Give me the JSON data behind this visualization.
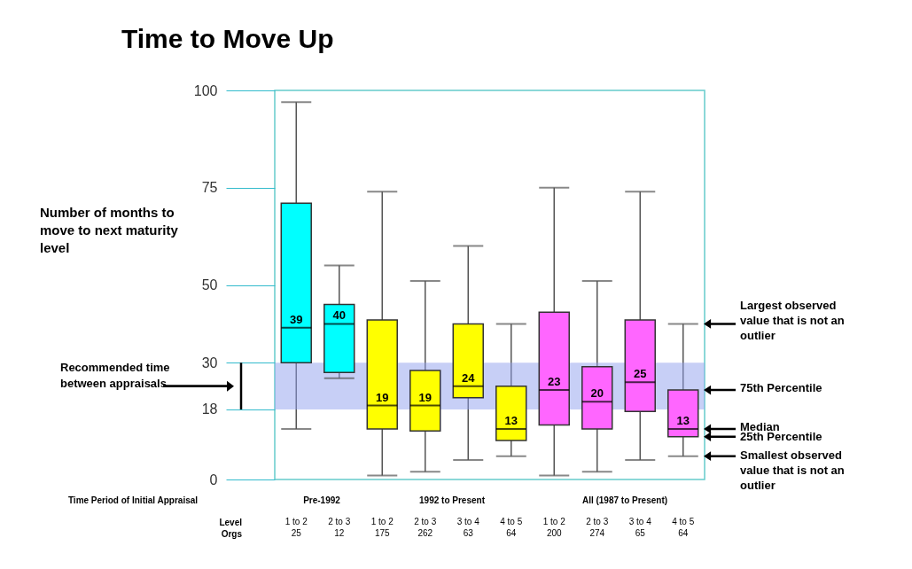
{
  "chart_data": {
    "type": "box",
    "title": "Time to Move Up",
    "ylabel": "Number of months to move to next maturity level",
    "categories": [
      "1 to 2\n25",
      "2 to 3\n12",
      "1 to 2\n175",
      "2 to 3\n262",
      "3 to 4\n63",
      "4 to 5\n64",
      "1 to 2\n200",
      "2 to 3\n274",
      "3 to 4\n65",
      "4 to 5\n64"
    ],
    "boxes": [
      {
        "low": 13,
        "q1": 30,
        "median": 39,
        "q3": 71,
        "high": 97
      },
      {
        "low": 26,
        "q1": 27.5,
        "median": 40,
        "q3": 45,
        "high": 55
      },
      {
        "low": 1,
        "q1": 13,
        "median": 19,
        "q3": 41,
        "high": 74
      },
      {
        "low": 2,
        "q1": 12.5,
        "median": 19,
        "q3": 28,
        "high": 51
      },
      {
        "low": 5,
        "q1": 21,
        "median": 24,
        "q3": 40,
        "high": 60
      },
      {
        "low": 6,
        "q1": 10,
        "median": 13,
        "q3": 24,
        "high": 40
      },
      {
        "low": 1,
        "q1": 14,
        "median": 23,
        "q3": 43,
        "high": 75
      },
      {
        "low": 2,
        "q1": 13,
        "median": 20,
        "q3": 29,
        "high": 51
      },
      {
        "low": 5,
        "q1": 17.5,
        "median": 25,
        "q3": 41,
        "high": 74
      },
      {
        "low": 6,
        "q1": 11,
        "median": 13,
        "q3": 23,
        "high": 40
      }
    ],
    "value_labels": [
      "39",
      "40",
      "19",
      "19",
      "24",
      "13",
      "23",
      "20",
      "25",
      "13"
    ],
    "colors": [
      "#00ffff",
      "#00ffff",
      "#ffff00",
      "#ffff00",
      "#ffff00",
      "#ffff00",
      "#ff66ff",
      "#ff66ff",
      "#ff66ff",
      "#ff66ff"
    ],
    "ylim": [
      0,
      100
    ],
    "yticks": [
      0,
      18,
      30,
      50,
      75,
      100
    ],
    "bands": [
      {
        "axis": "y",
        "from": 18,
        "to": 30,
        "color": "#8fa0ee"
      }
    ],
    "annotations": [
      "Time Period of Initial Appraisal",
      "Pre-1992",
      "1992 to Present",
      "All (1987 to Present)",
      "Level",
      "Orgs",
      "Recommended time between appraisals",
      "Largest observed value that is not an outlier",
      "75th Percentile",
      "Median",
      "25th Percentile",
      "Smallest observed value that is not an outlier"
    ]
  }
}
